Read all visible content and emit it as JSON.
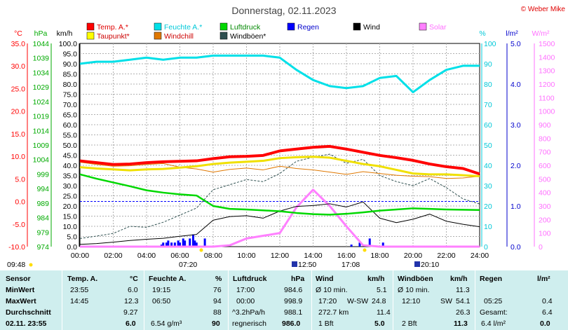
{
  "title": "Donnerstag, 02.11.2023",
  "credit": "© Weber Mike",
  "colors": {
    "temp": "#ff0000",
    "humidity": "#00e0e8",
    "pressure": "#00d800",
    "rain": "#0000ff",
    "wind": "#000000",
    "solar": "#ff80ff",
    "dewpoint": "#ffff00",
    "windchill": "#e07800",
    "gust": "#2f5050",
    "background": "#cfeeee"
  },
  "legend": [
    {
      "label": "Temp. A.*",
      "color": "#ff0000"
    },
    {
      "label": "Feuchte A.*",
      "color": "#00e0e8"
    },
    {
      "label": "Luftdruck",
      "color": "#00d800"
    },
    {
      "label": "Regen",
      "color": "#0000ff"
    },
    {
      "label": "Wind",
      "color": "#000000"
    },
    {
      "label": "Solar",
      "color": "#ff80ff"
    },
    {
      "label": "Taupunkt*",
      "color": "#ffff00"
    },
    {
      "label": "Windchill",
      "color": "#e07800"
    },
    {
      "label": "Windböen*",
      "color": "#2f5050"
    }
  ],
  "axis_units": {
    "temp": "°C",
    "pressure": "hPa",
    "wind": "km/h",
    "humidity": "%",
    "rain": "l/m²",
    "solar": "W/m²"
  },
  "events": {
    "sunrise": "07:20",
    "sunset": "17:08",
    "moonrise": "12:50",
    "moonset": "20:10",
    "time_left": "09:48"
  },
  "chart_data": {
    "type": "line",
    "x_label_ticks": [
      "00:00",
      "02:00",
      "04:00",
      "06:00",
      "08:00",
      "10:00",
      "12:00",
      "14:00",
      "16:00",
      "18:00",
      "20:00",
      "22:00",
      "24:00"
    ],
    "x_hours": [
      0,
      1,
      2,
      3,
      4,
      5,
      6,
      7,
      8,
      9,
      10,
      11,
      12,
      13,
      14,
      15,
      16,
      17,
      18,
      19,
      20,
      21,
      22,
      23,
      24
    ],
    "axes": {
      "temp": {
        "ylim": [
          -10,
          35
        ],
        "ticks": [
          "35.0",
          "30.0",
          "25.0",
          "20.0",
          "15.0",
          "10.0",
          "5.0",
          "0.0",
          "-5.0",
          "-10.0"
        ]
      },
      "pressure": {
        "ylim": [
          974,
          1044
        ],
        "ticks": [
          "1044",
          "1039",
          "1034",
          "1029",
          "1024",
          "1019",
          "1014",
          "1009",
          "1004",
          "999",
          "994",
          "989",
          "984",
          "979",
          "974"
        ]
      },
      "wind": {
        "ylim": [
          0,
          100
        ],
        "ticks": [
          "100.0",
          "95.0",
          "90.0",
          "85.0",
          "80.0",
          "75.0",
          "70.0",
          "65.0",
          "60.0",
          "55.0",
          "50.0",
          "45.0",
          "40.0",
          "35.0",
          "30.0",
          "25.0",
          "20.0",
          "15.0",
          "10.0",
          "5.0",
          "0.0"
        ]
      },
      "humidity": {
        "ylim": [
          0,
          100
        ],
        "ticks": [
          "100",
          "90",
          "80",
          "70",
          "60",
          "50",
          "40",
          "30",
          "20",
          "10",
          "0"
        ]
      },
      "rain": {
        "ylim": [
          0,
          5
        ],
        "ticks": [
          "5.0",
          "4.0",
          "3.0",
          "2.0",
          "1.0",
          "0.0"
        ]
      },
      "solar": {
        "ylim": [
          0,
          1500
        ],
        "ticks": [
          "1500",
          "1400",
          "1300",
          "1200",
          "1100",
          "1000",
          "900",
          "800",
          "700",
          "600",
          "500",
          "400",
          "300",
          "200",
          "100",
          "0"
        ]
      }
    },
    "series": [
      {
        "name": "Temp. A.*",
        "axis": "temp",
        "values": [
          9.0,
          8.6,
          8.2,
          8.3,
          8.6,
          8.8,
          8.9,
          9.0,
          9.5,
          9.9,
          10.0,
          10.2,
          11.2,
          11.6,
          12.0,
          12.2,
          11.6,
          10.9,
          10.2,
          9.7,
          9.1,
          8.3,
          7.7,
          7.3,
          6.1
        ]
      },
      {
        "name": "Feuchte A.*",
        "axis": "humidity",
        "values": [
          90,
          91,
          91,
          92,
          93,
          92,
          93,
          93,
          94,
          94,
          94,
          94,
          93,
          87,
          82,
          79,
          78,
          79,
          83,
          84,
          76,
          82,
          87,
          89,
          89
        ]
      },
      {
        "name": "Luftdruck",
        "axis": "pressure",
        "values": [
          998.9,
          997.4,
          996.1,
          994.8,
          993.4,
          992.6,
          992.0,
          991.6,
          988.0,
          987.0,
          986.8,
          986.5,
          986.2,
          985.6,
          985.2,
          985.0,
          985.3,
          985.8,
          986.4,
          986.8,
          987.2,
          987.0,
          986.8,
          986.7,
          986.6
        ]
      },
      {
        "name": "Taupunkt*",
        "axis": "temp",
        "values": [
          7.6,
          7.3,
          7.1,
          6.9,
          7.1,
          7.2,
          7.5,
          7.8,
          8.3,
          8.6,
          8.8,
          9.0,
          9.6,
          9.8,
          9.9,
          9.7,
          9.0,
          8.3,
          7.8,
          7.0,
          6.2,
          6.0,
          6.0,
          5.8,
          5.6
        ]
      },
      {
        "name": "Windchill",
        "axis": "temp",
        "values": [
          8.7,
          8.2,
          7.8,
          7.9,
          8.2,
          8.4,
          7.6,
          7.2,
          6.5,
          7.1,
          7.4,
          7.0,
          7.8,
          7.3,
          7.0,
          6.5,
          6.0,
          6.6,
          6.2,
          5.8,
          5.6,
          5.5,
          5.1,
          5.2,
          5.6
        ]
      },
      {
        "name": "Wind",
        "axis": "wind",
        "values": [
          1.1,
          1.5,
          2.2,
          3.0,
          3.6,
          4.1,
          5.1,
          6.0,
          13.0,
          14.8,
          15.2,
          14.0,
          17.5,
          19.8,
          20.2,
          21.1,
          19.5,
          22.0,
          14.0,
          11.8,
          13.5,
          16.0,
          12.5,
          11.0,
          9.8
        ]
      },
      {
        "name": "Windböen*",
        "axis": "wind",
        "values": [
          4.0,
          5.2,
          6.5,
          10.0,
          9.5,
          12.0,
          15.5,
          19.0,
          28.0,
          30.5,
          33.0,
          32.0,
          36.0,
          42.0,
          44.0,
          45.5,
          41.0,
          43.0,
          35.0,
          32.0,
          30.0,
          33.5,
          29.0,
          23.5,
          21.0
        ]
      },
      {
        "name": "Solar",
        "axis": "solar",
        "values": [
          0,
          0,
          0,
          0,
          0,
          0,
          0,
          0,
          0,
          10,
          60,
          80,
          100,
          290,
          420,
          300,
          150,
          10,
          0,
          0,
          0,
          0,
          0,
          0,
          0
        ]
      }
    ],
    "rain_bars": {
      "axis": "rain",
      "x": [
        4.9,
        5.0,
        5.2,
        5.3,
        5.5,
        5.7,
        5.9,
        6.0,
        6.2,
        6.3,
        6.6,
        6.8,
        6.9,
        7.0,
        7.5,
        16.3,
        16.8,
        17.4,
        18.2
      ],
      "values": [
        0.05,
        0.1,
        0.1,
        0.15,
        0.1,
        0.1,
        0.15,
        0.1,
        0.2,
        0.15,
        0.2,
        0.3,
        0.15,
        0.1,
        0.2,
        0.05,
        0.1,
        0.2,
        0.1
      ]
    }
  },
  "stats": {
    "headers": {
      "sensor": "Sensor",
      "temp": "Temp. A.",
      "temp_unit": "°C",
      "hum": "Feuchte A.",
      "hum_unit": "%",
      "press": "Luftdruck",
      "press_unit": "hPa",
      "wind": "Wind",
      "wind_unit": "km/h",
      "gust": "Windböen",
      "gust_unit": "km/h",
      "rain": "Regen",
      "rain_unit": "l/m²"
    },
    "min": {
      "label": "MinWert",
      "temp_time": "23:55",
      "temp": "6.0",
      "hum_time": "19:15",
      "hum": "76",
      "press_time": "17:00",
      "press": "984.6",
      "wind_label": "Ø 10 min.",
      "wind": "5.1",
      "gust_label": "Ø 10 min.",
      "gust": "11.3"
    },
    "max": {
      "label": "MaxWert",
      "temp_time": "14:45",
      "temp": "12.3",
      "hum_time": "06:50",
      "hum": "94",
      "press_time": "00:00",
      "press": "998.9",
      "wind_time": "17:20",
      "wind_dir": "W-SW",
      "wind": "24.8",
      "gust_time": "12:10",
      "gust_dir": "SW",
      "gust": "54.1",
      "rain_time": "05:25",
      "rain": "0.4"
    },
    "avg": {
      "label": "Durchschnitt",
      "temp": "9.27",
      "hum": "88",
      "press_trend": "^3.2hPa/h",
      "press": "988.1",
      "wind_run": "272.7 km",
      "wind": "11.4",
      "gust": "26.3",
      "rain_total_label": "Gesamt:",
      "rain": "6.4"
    },
    "current": {
      "label": "02.11. 23:55",
      "temp": "6.0",
      "hum_abs": "6.54 g/m³",
      "hum": "90",
      "press_trend": "regnerisch",
      "press": "986.0",
      "wind_bft": "1 Bft",
      "wind": "5.0",
      "gust_bft": "2 Bft",
      "gust": "11.3",
      "rain_rate": "6.4 l/m²",
      "rain": "0.0"
    }
  }
}
